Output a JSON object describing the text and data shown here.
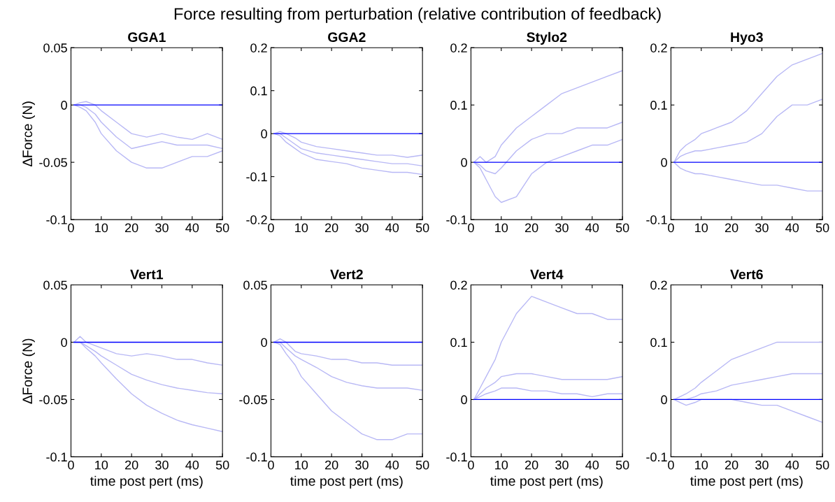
{
  "chart_data": [
    {
      "type": "other",
      "title": "Force resulting from perturbation (relative contribution of feedback)"
    },
    {
      "type": "line",
      "title": "GGA1",
      "ylabel": "∆Force (N)",
      "xlim": [
        0,
        50
      ],
      "xticks": [
        0,
        10,
        20,
        30,
        40,
        50
      ],
      "ylim": [
        -0.1,
        0.05
      ],
      "yticks": [
        -0.1,
        -0.05,
        0,
        0.05
      ],
      "series": [
        {
          "color": "#b8b8f5",
          "x": [
            1,
            3,
            5,
            8,
            10,
            15,
            20,
            25,
            30,
            35,
            40,
            45,
            50
          ],
          "values": [
            0,
            0.002,
            0.003,
            0,
            -0.005,
            -0.015,
            -0.025,
            -0.028,
            -0.025,
            -0.028,
            -0.03,
            -0.025,
            -0.03
          ]
        },
        {
          "color": "#b8b8f5",
          "x": [
            1,
            3,
            5,
            8,
            10,
            15,
            20,
            25,
            30,
            35,
            40,
            45,
            50
          ],
          "values": [
            0,
            0,
            -0.002,
            -0.008,
            -0.015,
            -0.028,
            -0.038,
            -0.035,
            -0.032,
            -0.035,
            -0.035,
            -0.035,
            -0.038
          ]
        },
        {
          "color": "#b8b8f5",
          "x": [
            1,
            3,
            5,
            8,
            10,
            15,
            20,
            25,
            30,
            35,
            40,
            45,
            50
          ],
          "values": [
            0,
            -0.002,
            -0.005,
            -0.015,
            -0.025,
            -0.04,
            -0.05,
            -0.055,
            -0.055,
            -0.05,
            -0.045,
            -0.045,
            -0.04
          ]
        },
        {
          "color": "#0000ff",
          "x": [
            1,
            50
          ],
          "values": [
            0,
            0
          ]
        }
      ]
    },
    {
      "type": "line",
      "title": "GGA2",
      "xlim": [
        0,
        50
      ],
      "xticks": [
        0,
        10,
        20,
        30,
        40,
        50
      ],
      "ylim": [
        -0.2,
        0.2
      ],
      "yticks": [
        -0.2,
        -0.1,
        0,
        0.1,
        0.2
      ],
      "series": [
        {
          "color": "#b8b8f5",
          "x": [
            1,
            3,
            5,
            8,
            10,
            15,
            20,
            25,
            30,
            35,
            40,
            45,
            50
          ],
          "values": [
            0,
            0.005,
            0,
            -0.01,
            -0.02,
            -0.03,
            -0.035,
            -0.04,
            -0.045,
            -0.05,
            -0.05,
            -0.055,
            -0.05
          ]
        },
        {
          "color": "#b8b8f5",
          "x": [
            1,
            3,
            5,
            8,
            10,
            15,
            20,
            25,
            30,
            35,
            40,
            45,
            50
          ],
          "values": [
            0,
            0,
            -0.01,
            -0.025,
            -0.035,
            -0.045,
            -0.05,
            -0.055,
            -0.06,
            -0.065,
            -0.07,
            -0.07,
            -0.075
          ]
        },
        {
          "color": "#b8b8f5",
          "x": [
            1,
            3,
            5,
            8,
            10,
            15,
            20,
            25,
            30,
            35,
            40,
            45,
            50
          ],
          "values": [
            0,
            -0.005,
            -0.02,
            -0.035,
            -0.045,
            -0.06,
            -0.065,
            -0.07,
            -0.08,
            -0.085,
            -0.09,
            -0.09,
            -0.095
          ]
        },
        {
          "color": "#0000ff",
          "x": [
            1,
            50
          ],
          "values": [
            0,
            0
          ]
        }
      ]
    },
    {
      "type": "line",
      "title": "Stylo2",
      "xlim": [
        0,
        50
      ],
      "xticks": [
        0,
        10,
        20,
        30,
        40,
        50
      ],
      "ylim": [
        -0.1,
        0.2
      ],
      "yticks": [
        -0.1,
        0,
        0.1,
        0.2
      ],
      "series": [
        {
          "color": "#b8b8f5",
          "x": [
            1,
            3,
            5,
            8,
            10,
            15,
            20,
            25,
            30,
            35,
            40,
            45,
            50
          ],
          "values": [
            0,
            0.01,
            0,
            0.01,
            0.03,
            0.06,
            0.08,
            0.1,
            0.12,
            0.13,
            0.14,
            0.15,
            0.16
          ]
        },
        {
          "color": "#b8b8f5",
          "x": [
            1,
            3,
            5,
            8,
            10,
            15,
            20,
            25,
            30,
            35,
            40,
            45,
            50
          ],
          "values": [
            0,
            -0.005,
            -0.015,
            -0.02,
            -0.01,
            0.02,
            0.04,
            0.05,
            0.05,
            0.06,
            0.06,
            0.06,
            0.07
          ]
        },
        {
          "color": "#b8b8f5",
          "x": [
            1,
            3,
            5,
            8,
            10,
            15,
            20,
            25,
            30,
            35,
            40,
            45,
            50
          ],
          "values": [
            0,
            -0.01,
            -0.03,
            -0.06,
            -0.07,
            -0.06,
            -0.02,
            0,
            0.01,
            0.02,
            0.03,
            0.03,
            0.04
          ]
        },
        {
          "color": "#0000ff",
          "x": [
            1,
            50
          ],
          "values": [
            0,
            0
          ]
        }
      ]
    },
    {
      "type": "line",
      "title": "Hyo3",
      "xlim": [
        0,
        50
      ],
      "xticks": [
        0,
        10,
        20,
        30,
        40,
        50
      ],
      "ylim": [
        -0.1,
        0.2
      ],
      "yticks": [
        -0.1,
        0,
        0.1,
        0.2
      ],
      "series": [
        {
          "color": "#b8b8f5",
          "x": [
            1,
            3,
            5,
            8,
            10,
            15,
            20,
            25,
            30,
            35,
            40,
            45,
            50
          ],
          "values": [
            0,
            0.02,
            0.03,
            0.04,
            0.05,
            0.06,
            0.07,
            0.09,
            0.12,
            0.15,
            0.17,
            0.18,
            0.19
          ]
        },
        {
          "color": "#b8b8f5",
          "x": [
            1,
            3,
            5,
            8,
            10,
            15,
            20,
            25,
            30,
            35,
            40,
            45,
            50
          ],
          "values": [
            0,
            0.01,
            0.015,
            0.02,
            0.02,
            0.025,
            0.03,
            0.035,
            0.05,
            0.08,
            0.1,
            0.1,
            0.11
          ]
        },
        {
          "color": "#b8b8f5",
          "x": [
            1,
            3,
            5,
            8,
            10,
            15,
            20,
            25,
            30,
            35,
            40,
            45,
            50
          ],
          "values": [
            0,
            -0.01,
            -0.015,
            -0.02,
            -0.02,
            -0.025,
            -0.03,
            -0.035,
            -0.04,
            -0.04,
            -0.045,
            -0.05,
            -0.05
          ]
        },
        {
          "color": "#0000ff",
          "x": [
            1,
            50
          ],
          "values": [
            0,
            0
          ]
        }
      ]
    },
    {
      "type": "line",
      "title": "Vert1",
      "xlabel": "time post pert (ms)",
      "ylabel": "∆Force (N)",
      "xlim": [
        0,
        50
      ],
      "xticks": [
        0,
        10,
        20,
        30,
        40,
        50
      ],
      "ylim": [
        -0.1,
        0.05
      ],
      "yticks": [
        -0.1,
        -0.05,
        0,
        0.05
      ],
      "series": [
        {
          "color": "#b8b8f5",
          "x": [
            1,
            3,
            5,
            8,
            10,
            15,
            20,
            25,
            30,
            35,
            40,
            45,
            50
          ],
          "values": [
            0,
            0.005,
            0,
            -0.003,
            -0.005,
            -0.01,
            -0.012,
            -0.01,
            -0.012,
            -0.015,
            -0.015,
            -0.018,
            -0.02
          ]
        },
        {
          "color": "#b8b8f5",
          "x": [
            1,
            3,
            5,
            8,
            10,
            15,
            20,
            25,
            30,
            35,
            40,
            45,
            50
          ],
          "values": [
            0,
            0,
            -0.003,
            -0.008,
            -0.012,
            -0.02,
            -0.028,
            -0.033,
            -0.037,
            -0.04,
            -0.042,
            -0.044,
            -0.045
          ]
        },
        {
          "color": "#b8b8f5",
          "x": [
            1,
            3,
            5,
            8,
            10,
            15,
            20,
            25,
            30,
            35,
            40,
            45,
            50
          ],
          "values": [
            0,
            0,
            -0.005,
            -0.012,
            -0.018,
            -0.032,
            -0.045,
            -0.055,
            -0.062,
            -0.068,
            -0.072,
            -0.075,
            -0.078
          ]
        },
        {
          "color": "#0000ff",
          "x": [
            1,
            50
          ],
          "values": [
            0,
            0
          ]
        }
      ]
    },
    {
      "type": "line",
      "title": "Vert2",
      "xlabel": "time post pert (ms)",
      "xlim": [
        0,
        50
      ],
      "xticks": [
        0,
        10,
        20,
        30,
        40,
        50
      ],
      "ylim": [
        -0.1,
        0.05
      ],
      "yticks": [
        -0.1,
        -0.05,
        0,
        0.05
      ],
      "series": [
        {
          "color": "#b8b8f5",
          "x": [
            1,
            3,
            5,
            8,
            10,
            15,
            20,
            25,
            30,
            35,
            40,
            45,
            50
          ],
          "values": [
            0,
            0.003,
            0,
            -0.008,
            -0.01,
            -0.012,
            -0.015,
            -0.015,
            -0.018,
            -0.018,
            -0.02,
            -0.02,
            -0.02
          ]
        },
        {
          "color": "#b8b8f5",
          "x": [
            1,
            3,
            5,
            8,
            10,
            15,
            20,
            25,
            30,
            35,
            40,
            45,
            50
          ],
          "values": [
            0,
            0,
            -0.005,
            -0.012,
            -0.015,
            -0.022,
            -0.03,
            -0.035,
            -0.038,
            -0.04,
            -0.04,
            -0.04,
            -0.042
          ]
        },
        {
          "color": "#b8b8f5",
          "x": [
            1,
            3,
            5,
            8,
            10,
            15,
            20,
            25,
            30,
            35,
            40,
            45,
            50
          ],
          "values": [
            0,
            -0.002,
            -0.01,
            -0.02,
            -0.03,
            -0.045,
            -0.06,
            -0.07,
            -0.08,
            -0.085,
            -0.085,
            -0.08,
            -0.08
          ]
        },
        {
          "color": "#0000ff",
          "x": [
            1,
            50
          ],
          "values": [
            0,
            0
          ]
        }
      ]
    },
    {
      "type": "line",
      "title": "Vert4",
      "xlabel": "time post pert (ms)",
      "xlim": [
        0,
        50
      ],
      "xticks": [
        0,
        10,
        20,
        30,
        40,
        50
      ],
      "ylim": [
        -0.1,
        0.2
      ],
      "yticks": [
        -0.1,
        0,
        0.1,
        0.2
      ],
      "series": [
        {
          "color": "#b8b8f5",
          "x": [
            1,
            3,
            5,
            8,
            10,
            15,
            20,
            25,
            30,
            35,
            40,
            45,
            50
          ],
          "values": [
            0,
            0.02,
            0.04,
            0.07,
            0.1,
            0.15,
            0.18,
            0.17,
            0.16,
            0.15,
            0.15,
            0.14,
            0.14
          ]
        },
        {
          "color": "#b8b8f5",
          "x": [
            1,
            3,
            5,
            8,
            10,
            15,
            20,
            25,
            30,
            35,
            40,
            45,
            50
          ],
          "values": [
            0,
            0.01,
            0.02,
            0.03,
            0.04,
            0.045,
            0.045,
            0.04,
            0.035,
            0.035,
            0.035,
            0.035,
            0.04
          ]
        },
        {
          "color": "#b8b8f5",
          "x": [
            1,
            3,
            5,
            8,
            10,
            15,
            20,
            25,
            30,
            35,
            40,
            45,
            50
          ],
          "values": [
            0,
            0.005,
            0.01,
            0.015,
            0.02,
            0.02,
            0.015,
            0.015,
            0.01,
            0.01,
            0.005,
            0.01,
            0.01
          ]
        },
        {
          "color": "#0000ff",
          "x": [
            1,
            50
          ],
          "values": [
            0,
            0
          ]
        }
      ]
    },
    {
      "type": "line",
      "title": "Vert6",
      "xlabel": "time post pert (ms)",
      "xlim": [
        0,
        50
      ],
      "xticks": [
        0,
        10,
        20,
        30,
        40,
        50
      ],
      "ylim": [
        -0.1,
        0.2
      ],
      "yticks": [
        -0.1,
        0,
        0.1,
        0.2
      ],
      "series": [
        {
          "color": "#b8b8f5",
          "x": [
            1,
            3,
            5,
            8,
            10,
            15,
            20,
            25,
            30,
            35,
            40,
            45,
            50
          ],
          "values": [
            0,
            0.005,
            0.01,
            0.02,
            0.03,
            0.05,
            0.07,
            0.08,
            0.09,
            0.1,
            0.1,
            0.1,
            0.1
          ]
        },
        {
          "color": "#b8b8f5",
          "x": [
            1,
            3,
            5,
            8,
            10,
            15,
            20,
            25,
            30,
            35,
            40,
            45,
            50
          ],
          "values": [
            0,
            0,
            0,
            0.005,
            0.01,
            0.015,
            0.025,
            0.03,
            0.035,
            0.04,
            0.045,
            0.045,
            0.045
          ]
        },
        {
          "color": "#b8b8f5",
          "x": [
            1,
            3,
            5,
            8,
            10,
            15,
            20,
            25,
            30,
            35,
            40,
            45,
            50
          ],
          "values": [
            0,
            -0.005,
            -0.01,
            -0.005,
            0,
            0,
            0,
            -0.005,
            -0.01,
            -0.01,
            -0.02,
            -0.03,
            -0.04
          ]
        },
        {
          "color": "#0000ff",
          "x": [
            1,
            50
          ],
          "values": [
            0,
            0
          ]
        }
      ]
    }
  ]
}
